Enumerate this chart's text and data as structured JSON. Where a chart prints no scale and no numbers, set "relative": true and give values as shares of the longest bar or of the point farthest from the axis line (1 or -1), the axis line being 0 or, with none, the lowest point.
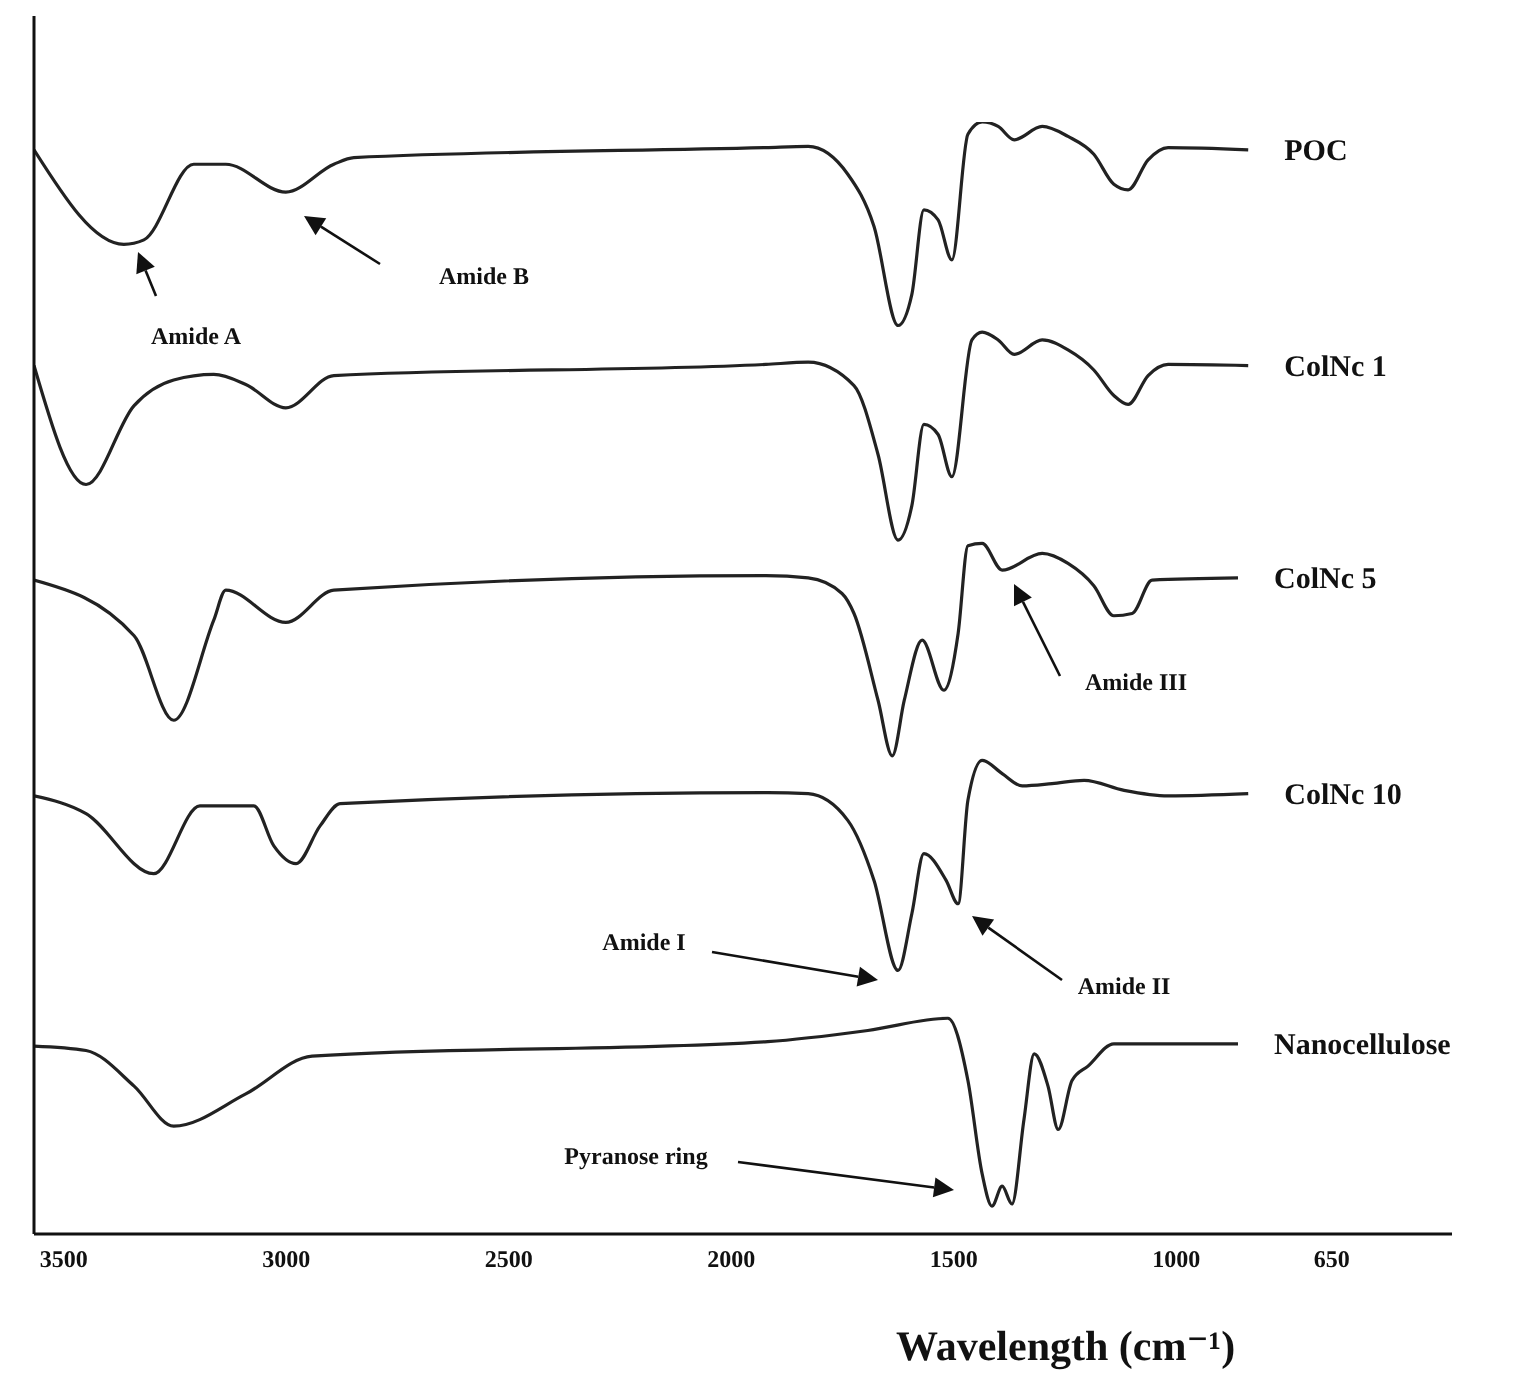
{
  "chart_data": {
    "type": "line",
    "relative": true,
    "xlabel": "Wavelength (cm⁻¹)",
    "xlim": [
      3567,
      380
    ],
    "xticks": [
      3500,
      3000,
      2500,
      2000,
      1500,
      1000,
      650
    ],
    "series": [
      {
        "name": "POC",
        "color": "#222222",
        "x": [
          3567,
          3365,
          3320,
          3208,
          3136,
          3001,
          2893,
          2848,
          1922,
          1827,
          1738,
          1679,
          1625,
          1594,
          1567,
          1535,
          1504,
          1468,
          1436,
          1400,
          1364,
          1301,
          1243,
          1185,
          1140,
          1108,
          1063,
          1018,
          838
        ],
        "values": [
          0.975,
          0.89,
          0.894,
          0.962,
          0.962,
          0.937,
          0.962,
          0.968,
          0.977,
          0.978,
          0.953,
          0.906,
          0.817,
          0.845,
          0.921,
          0.912,
          0.876,
          0.989,
          1,
          0.996,
          0.984,
          0.996,
          0.987,
          0.971,
          0.944,
          0.939,
          0.966,
          0.977,
          0.975
        ]
      },
      {
        "name": "ColNc 1",
        "color": "#222222",
        "x": [
          3567,
          3450,
          3342,
          3253,
          3163,
          3091,
          3001,
          2893,
          1922,
          1827,
          1724,
          1670,
          1625,
          1594,
          1567,
          1535,
          1504,
          1459,
          1436,
          1400,
          1364,
          1301,
          1243,
          1185,
          1140,
          1108,
          1063,
          1018,
          838
        ],
        "values": [
          0.781,
          0.674,
          0.745,
          0.768,
          0.773,
          0.764,
          0.743,
          0.772,
          0.782,
          0.784,
          0.763,
          0.701,
          0.624,
          0.655,
          0.728,
          0.719,
          0.681,
          0.804,
          0.811,
          0.804,
          0.791,
          0.804,
          0.795,
          0.777,
          0.754,
          0.746,
          0.772,
          0.782,
          0.781
        ]
      },
      {
        "name": "ColNc 5",
        "color": "#222222",
        "x": [
          3567,
          3342,
          3253,
          3163,
          3136,
          3001,
          2893,
          1922,
          1827,
          1751,
          1724,
          1670,
          1638,
          1611,
          1571,
          1522,
          1490,
          1468,
          1436,
          1391,
          1301,
          1243,
          1185,
          1140,
          1099,
          1054,
          861
        ],
        "values": [
          0.588,
          0.538,
          0.462,
          0.552,
          0.579,
          0.55,
          0.579,
          0.592,
          0.59,
          0.576,
          0.558,
          0.48,
          0.43,
          0.48,
          0.534,
          0.489,
          0.54,
          0.619,
          0.621,
          0.597,
          0.612,
          0.603,
          0.583,
          0.556,
          0.558,
          0.588,
          0.59
        ]
      },
      {
        "name": "ColNc 10",
        "color": "#222222",
        "x": [
          3567,
          3450,
          3298,
          3194,
          3073,
          3028,
          2978,
          2924,
          2879,
          1918,
          1827,
          1738,
          1679,
          1625,
          1594,
          1567,
          1517,
          1490,
          1468,
          1436,
          1391,
          1346,
          1279,
          1207,
          1117,
          1018,
          838
        ],
        "values": [
          0.394,
          0.378,
          0.324,
          0.385,
          0.385,
          0.349,
          0.333,
          0.367,
          0.387,
          0.397,
          0.396,
          0.372,
          0.318,
          0.237,
          0.288,
          0.342,
          0.318,
          0.297,
          0.39,
          0.426,
          0.414,
          0.403,
          0.405,
          0.408,
          0.399,
          0.394,
          0.396
        ]
      },
      {
        "name": "Nanocellulose",
        "color": "#222222",
        "x": [
          3567,
          3450,
          3342,
          3253,
          3091,
          2942,
          1918,
          1693,
          1513,
          1468,
          1436,
          1414,
          1391,
          1369,
          1342,
          1319,
          1288,
          1265,
          1234,
          1198,
          1140,
          861
        ],
        "values": [
          0.169,
          0.165,
          0.133,
          0.097,
          0.126,
          0.16,
          0.173,
          0.183,
          0.194,
          0.138,
          0.054,
          0.025,
          0.043,
          0.027,
          0.103,
          0.162,
          0.133,
          0.094,
          0.138,
          0.151,
          0.171,
          0.171
        ]
      }
    ],
    "annotations": [
      "Amide A",
      "Amide B",
      "Amide III",
      "Amide I",
      "Amide II",
      "Pyranose ring"
    ]
  }
}
